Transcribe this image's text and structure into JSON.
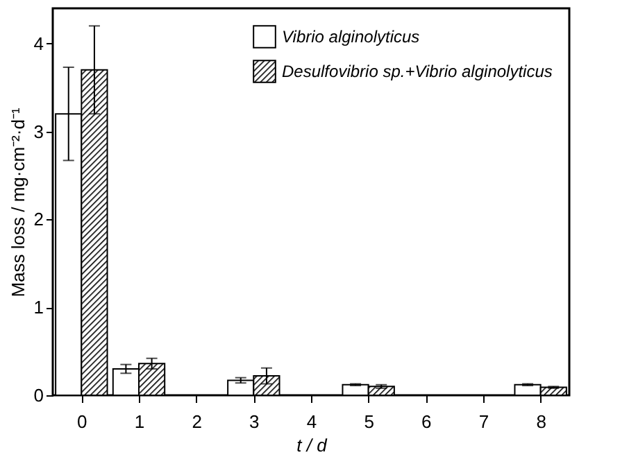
{
  "chart_data": {
    "type": "bar",
    "xlabel": "t / d",
    "ylabel": "Mass loss / mg·cm⁻²·d⁻¹",
    "categories": [
      "0",
      "1",
      "2",
      "3",
      "4",
      "5",
      "6",
      "7",
      "8"
    ],
    "series": [
      {
        "name": "Vibrio alginolyticus",
        "color": "#ffffff",
        "values": [
          3.2,
          0.3,
          null,
          0.17,
          null,
          0.12,
          null,
          null,
          0.12
        ],
        "errors": [
          0.53,
          0.05,
          null,
          0.03,
          null,
          0.01,
          null,
          null,
          0.01
        ]
      },
      {
        "name": "Desulfovibrio sp.+Vibrio alginolyticus",
        "color": "#000000",
        "values": [
          3.7,
          0.36,
          null,
          0.22,
          null,
          0.1,
          null,
          null,
          0.09
        ],
        "errors": [
          0.5,
          0.06,
          null,
          0.09,
          null,
          0.02,
          null,
          null,
          0.01
        ]
      }
    ],
    "ylim": [
      0,
      4.4
    ],
    "yticks": [
      0,
      1,
      2,
      3,
      4
    ],
    "legend": "top right",
    "grid": false
  }
}
